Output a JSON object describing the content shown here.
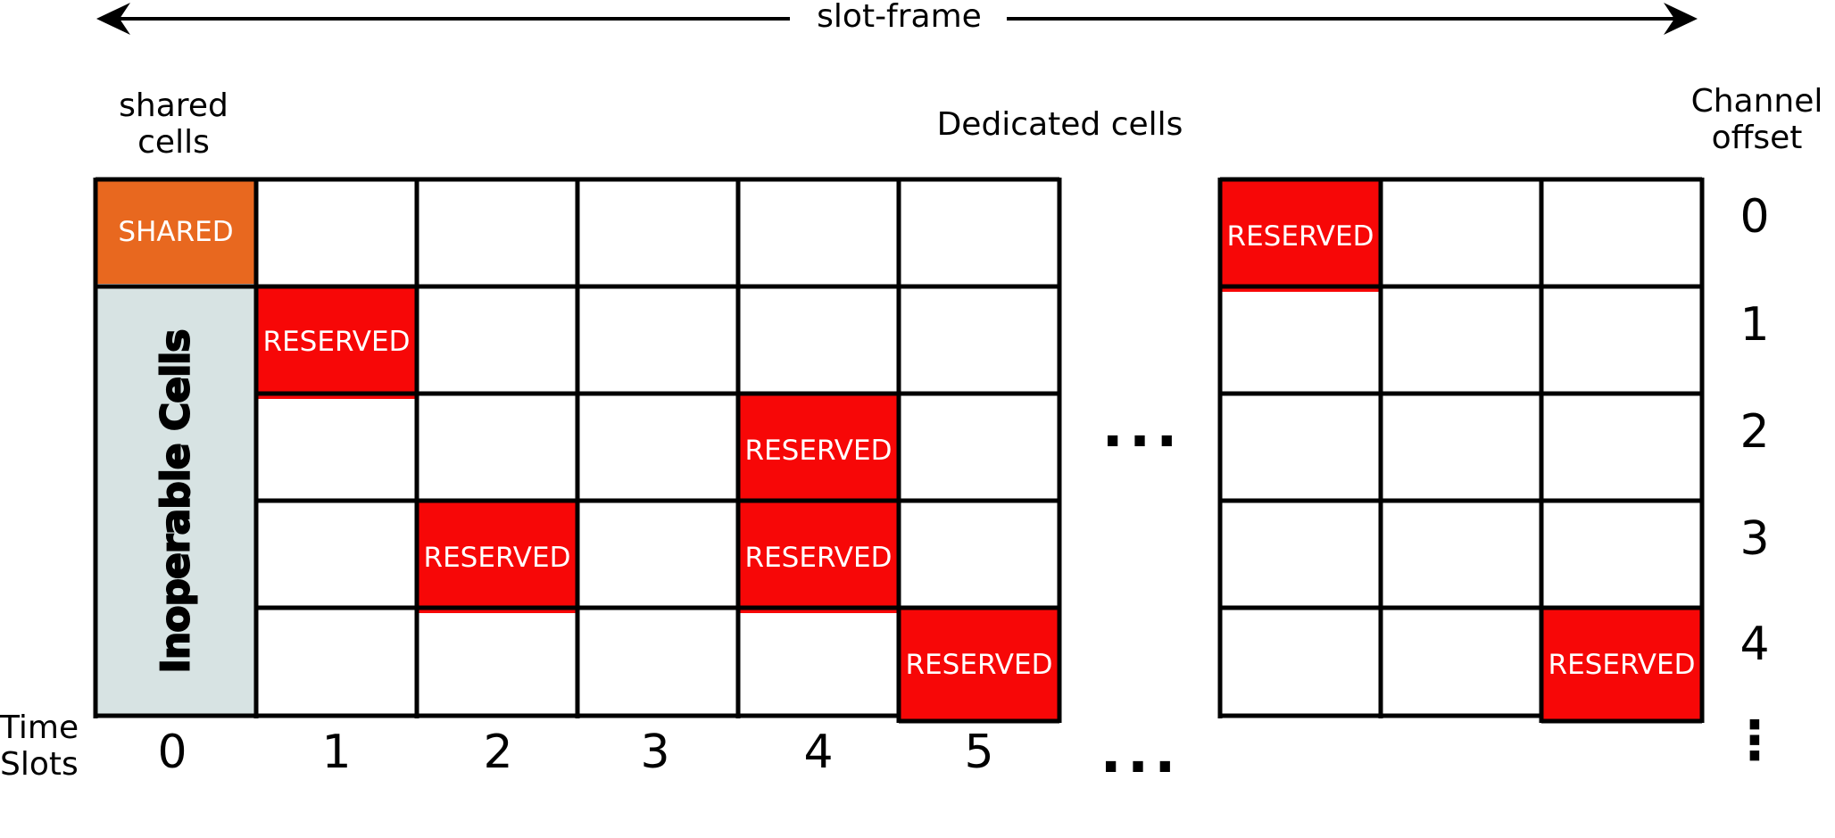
{
  "header": {
    "span_label": "slot-frame"
  },
  "labels": {
    "shared_cells": "shared\ncells",
    "dedicated_cells": "Dedicated cells",
    "channel_offset": "Channel\noffset",
    "time_slots": "Time\nSlots",
    "inoperable": "Inoperable Cells",
    "ellipsis": "..."
  },
  "cells": {
    "shared": "SHARED",
    "reserved": "RESERVED"
  },
  "channel_offsets": [
    "0",
    "1",
    "2",
    "3",
    "4",
    "⋮"
  ],
  "time_slot_numbers": [
    "0",
    "1",
    "2",
    "3",
    "4",
    "5"
  ],
  "reserved_cells": [
    {
      "time_slot": "1",
      "channel_offset": "1"
    },
    {
      "time_slot": "2",
      "channel_offset": "3"
    },
    {
      "time_slot": "4",
      "channel_offset": "2"
    },
    {
      "time_slot": "4",
      "channel_offset": "3"
    },
    {
      "time_slot": "5",
      "channel_offset": "4"
    },
    {
      "time_slot": "after ellipsis, column 1",
      "channel_offset": "0"
    },
    {
      "time_slot": "after ellipsis, column 3",
      "channel_offset": "4"
    }
  ],
  "colors": {
    "shared": "#E8681F",
    "reserved": "#F70707",
    "inoperable": "#D7E3E3",
    "grid": "#000000"
  }
}
